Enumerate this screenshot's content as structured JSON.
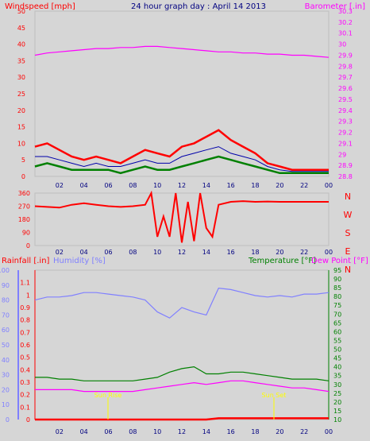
{
  "header": {
    "title": "24 hour graph day : April 14 2013",
    "left_label": "Windspeed [mph]",
    "right_label": "Barometer [.in]"
  },
  "colors": {
    "background": "#d6d6d6",
    "wind": "#ff0000",
    "wind_avg": "#0000aa",
    "wind_gust": "#008000",
    "barometer": "#ff00ff",
    "direction": "#ff0000",
    "rain": "#ff0000",
    "humidity": "#8080ff",
    "temperature": "#008000",
    "dewpoint": "#ff00ff",
    "sun": "#ffff00",
    "title": "#000080"
  },
  "x_ticks": [
    "02",
    "04",
    "06",
    "08",
    "10",
    "12",
    "14",
    "16",
    "18",
    "20",
    "22",
    "00"
  ],
  "sun_labels": {
    "sunrise": "Sun Rise",
    "sunset": "Sun Set"
  },
  "chart_data": [
    {
      "type": "line",
      "title": "24 hour graph day : April 14 2013",
      "ylabel": "Windspeed [mph]",
      "y2label": "Barometer [.in]",
      "ylim": [
        0,
        50
      ],
      "y2lim": [
        28.8,
        30.3
      ],
      "yticks": [
        "0",
        "5",
        "10",
        "15",
        "20",
        "25",
        "30",
        "35",
        "40",
        "45",
        "50"
      ],
      "y2ticks": [
        "28.8",
        "28.9",
        "29",
        "29.1",
        "29.2",
        "29.3",
        "29.4",
        "29.5",
        "29.6",
        "29.7",
        "29.8",
        "29.9",
        "30",
        "30.1",
        "30.2",
        "30.3"
      ],
      "x": [
        0,
        1,
        2,
        3,
        4,
        5,
        6,
        7,
        8,
        9,
        10,
        11,
        12,
        13,
        14,
        15,
        16,
        17,
        18,
        19,
        20,
        21,
        22,
        23,
        24
      ],
      "series": [
        {
          "values": [
            9,
            10,
            8,
            6,
            5,
            6,
            5,
            4,
            6,
            8,
            7,
            6,
            9,
            10,
            12,
            14,
            11,
            9,
            7,
            4,
            3,
            2,
            2,
            2,
            2
          ]
        },
        {
          "values": [
            6,
            6,
            5,
            4,
            3,
            4,
            3,
            3,
            4,
            5,
            4,
            4,
            6,
            7,
            8,
            9,
            7,
            6,
            5,
            3,
            2,
            1.5,
            1.5,
            1.5,
            1.5
          ]
        },
        {
          "values": [
            3,
            4,
            3,
            2,
            2,
            2,
            2,
            1,
            2,
            3,
            2,
            2,
            3,
            4,
            5,
            6,
            5,
            4,
            3,
            2,
            1,
            1,
            1,
            1,
            1
          ]
        },
        {
          "values": [
            29.9,
            29.92,
            29.93,
            29.94,
            29.95,
            29.96,
            29.96,
            29.97,
            29.97,
            29.98,
            29.98,
            29.97,
            29.96,
            29.95,
            29.94,
            29.93,
            29.93,
            29.92,
            29.92,
            29.91,
            29.91,
            29.9,
            29.9,
            29.89,
            29.88
          ]
        }
      ]
    },
    {
      "type": "line",
      "ylabel": "Wind direction",
      "ylim": [
        0,
        360
      ],
      "yticks": [
        "0",
        "90",
        "180",
        "270",
        "360"
      ],
      "compass": [
        "N",
        "W",
        "S",
        "E",
        "N"
      ],
      "x": [
        0,
        1,
        2,
        3,
        4,
        5,
        6,
        7,
        8,
        9,
        9.5,
        10,
        10.5,
        11,
        11.5,
        12,
        12.5,
        13,
        13.5,
        14,
        14.5,
        15,
        16,
        17,
        18,
        19,
        20,
        21,
        22,
        23,
        24
      ],
      "values": [
        270,
        265,
        260,
        280,
        290,
        280,
        270,
        265,
        270,
        280,
        360,
        60,
        200,
        60,
        360,
        20,
        300,
        30,
        360,
        120,
        60,
        280,
        300,
        305,
        300,
        302,
        300,
        300,
        300,
        300,
        300
      ]
    },
    {
      "type": "line",
      "ylabels": [
        "Rainfall [.in]",
        "Humidity [%]",
        "Temperature [°F]",
        "Dew Point [°F]"
      ],
      "humidity_lim": [
        0,
        100
      ],
      "humidity_ticks": [
        "0",
        "10",
        "20",
        "30",
        "40",
        "50",
        "60",
        "70",
        "80",
        "90",
        "100"
      ],
      "rain_lim": [
        0,
        1.2
      ],
      "rain_ticks": [
        "0",
        "0.1",
        "0.2",
        "0.3",
        "0.4",
        "0.5",
        "0.6",
        "0.7",
        "0.8",
        "0.9",
        "1",
        "1.1"
      ],
      "temp_lim": [
        10,
        95
      ],
      "temp_ticks": [
        "10",
        "15",
        "20",
        "25",
        "30",
        "35",
        "40",
        "45",
        "50",
        "55",
        "60",
        "65",
        "70",
        "75",
        "80",
        "85",
        "90",
        "95"
      ],
      "x": [
        0,
        1,
        2,
        3,
        4,
        5,
        6,
        7,
        8,
        9,
        10,
        11,
        12,
        13,
        14,
        15,
        16,
        17,
        18,
        19,
        20,
        21,
        22,
        23,
        24
      ],
      "series": [
        {
          "name": "Humidity [%]",
          "values": [
            80,
            82,
            82,
            83,
            85,
            85,
            84,
            83,
            82,
            80,
            72,
            68,
            75,
            72,
            70,
            88,
            87,
            85,
            83,
            82,
            83,
            82,
            84,
            84,
            85
          ]
        },
        {
          "name": "Temperature [°F]",
          "values": [
            34,
            34,
            33,
            33,
            32,
            32,
            32,
            32,
            32,
            33,
            34,
            37,
            39,
            40,
            36,
            36,
            37,
            37,
            36,
            35,
            34,
            33,
            33,
            33,
            32
          ]
        },
        {
          "name": "Dew Point [°F]",
          "values": [
            27,
            27,
            27,
            27,
            26,
            26,
            26,
            26,
            26,
            27,
            28,
            29,
            30,
            31,
            30,
            31,
            32,
            32,
            31,
            30,
            29,
            28,
            28,
            27,
            26
          ]
        },
        {
          "name": "Rainfall [.in]",
          "values": [
            0,
            0,
            0,
            0,
            0,
            0,
            0,
            0,
            0,
            0,
            0,
            0,
            0,
            0,
            0,
            0.01,
            0.01,
            0.01,
            0.01,
            0.01,
            0.01,
            0.01,
            0.01,
            0.01,
            0.01
          ]
        }
      ]
    }
  ]
}
